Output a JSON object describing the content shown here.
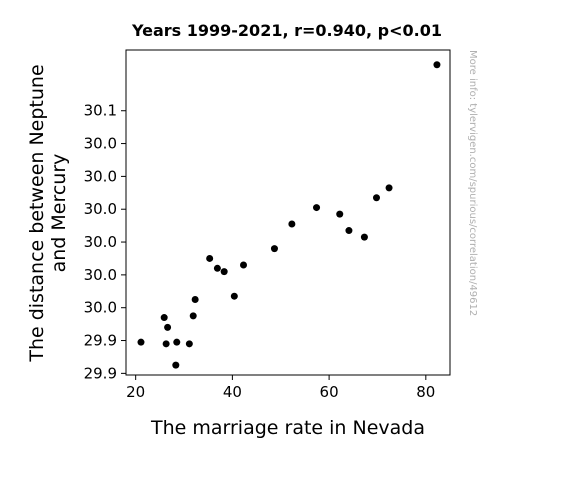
{
  "chart_data": {
    "type": "scatter",
    "title": "Years 1999-2021, r=0.940, p<0.01",
    "xlabel": "The marriage rate in Nevada",
    "ylabel_lines": [
      "The distance between Neptune",
      "and Mercury"
    ],
    "xlim": [
      18,
      85
    ],
    "ylim": [
      29.905,
      30.103
    ],
    "x_ticks": [
      {
        "value": 20,
        "label": "20"
      },
      {
        "value": 40,
        "label": "40"
      },
      {
        "value": 60,
        "label": "60"
      },
      {
        "value": 80,
        "label": "80"
      }
    ],
    "y_ticks": [
      {
        "value": 29.906,
        "label": "29.9"
      },
      {
        "value": 29.926,
        "label": "29.9"
      },
      {
        "value": 29.946,
        "label": "30.0"
      },
      {
        "value": 29.966,
        "label": "30.0"
      },
      {
        "value": 29.986,
        "label": "30.0"
      },
      {
        "value": 30.006,
        "label": "30.0"
      },
      {
        "value": 30.026,
        "label": "30.0"
      },
      {
        "value": 30.046,
        "label": "30.0"
      },
      {
        "value": 30.066,
        "label": "30.1"
      }
    ],
    "points": [
      {
        "x": 21.1,
        "y": 29.925
      },
      {
        "x": 25.9,
        "y": 29.94
      },
      {
        "x": 26.3,
        "y": 29.924
      },
      {
        "x": 26.6,
        "y": 29.934
      },
      {
        "x": 28.3,
        "y": 29.911
      },
      {
        "x": 28.5,
        "y": 29.925
      },
      {
        "x": 31.1,
        "y": 29.924
      },
      {
        "x": 31.9,
        "y": 29.941
      },
      {
        "x": 32.3,
        "y": 29.951
      },
      {
        "x": 35.3,
        "y": 29.976
      },
      {
        "x": 36.9,
        "y": 29.97
      },
      {
        "x": 38.3,
        "y": 29.968
      },
      {
        "x": 40.4,
        "y": 29.953
      },
      {
        "x": 42.3,
        "y": 29.972
      },
      {
        "x": 48.7,
        "y": 29.982
      },
      {
        "x": 52.3,
        "y": 29.997
      },
      {
        "x": 57.4,
        "y": 30.007
      },
      {
        "x": 62.2,
        "y": 30.003
      },
      {
        "x": 64.1,
        "y": 29.993
      },
      {
        "x": 67.3,
        "y": 29.989
      },
      {
        "x": 69.8,
        "y": 30.013
      },
      {
        "x": 72.4,
        "y": 30.019
      },
      {
        "x": 82.3,
        "y": 30.094
      }
    ],
    "point_color": "#000000",
    "grid": false
  },
  "side_note": "More info: tylervigen.com/spurious/correlation/49612"
}
